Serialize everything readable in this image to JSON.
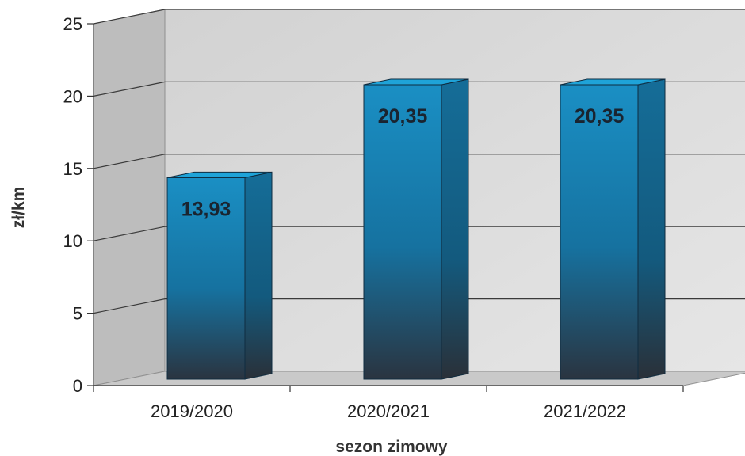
{
  "chart_data": {
    "type": "bar",
    "categories": [
      "2019/2020",
      "2020/2021",
      "2021/2022"
    ],
    "values": [
      13.93,
      20.35,
      20.35
    ],
    "value_labels": [
      "13,93",
      "20,35",
      "20,35"
    ],
    "xlabel": "sezon zimowy",
    "ylabel": "zł/km",
    "ylim": [
      0,
      25
    ],
    "yticks": [
      0,
      5,
      10,
      15,
      20,
      25
    ],
    "grid": true,
    "legend": "none",
    "style": "3d",
    "colors": {
      "bar_top": "#1a8fc4",
      "bar_bottom": "#1d3a52",
      "wall": "#dcdcdc",
      "side_wall": "#bdbdbd",
      "floor": "#c9c9c9"
    }
  }
}
